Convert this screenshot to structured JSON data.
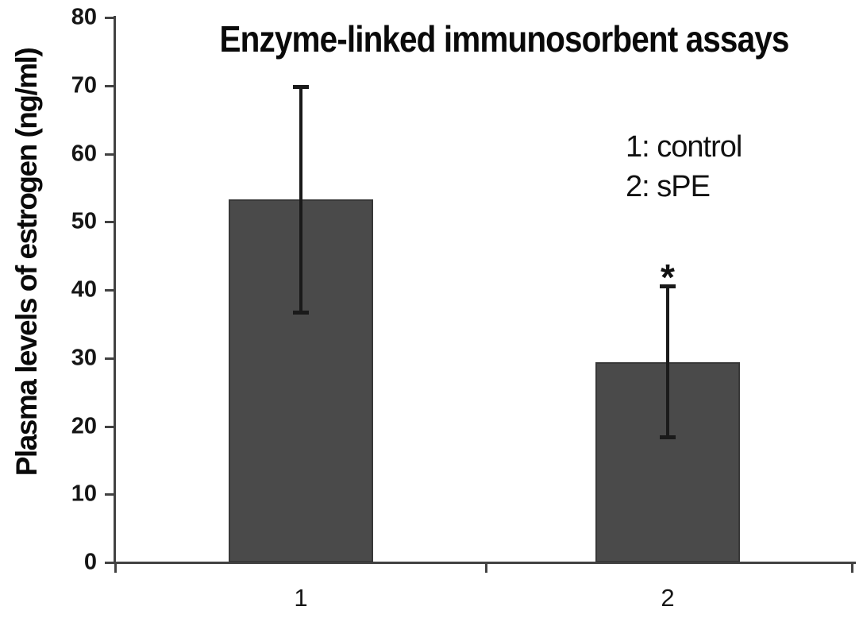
{
  "chart_data": {
    "type": "bar",
    "title": "Enzyme-linked immunosorbent assays",
    "ylabel": "Plasma levels of estrogen (ng/ml)",
    "xlabel": "",
    "categories": [
      "1",
      "2"
    ],
    "series_labels": [
      "control",
      "sPE"
    ],
    "values": [
      53.3,
      29.4
    ],
    "error_upper": [
      69.8,
      40.6
    ],
    "error_lower": [
      36.6,
      18.3
    ],
    "ylim": [
      0,
      80
    ],
    "yticks": [
      0,
      10,
      20,
      30,
      40,
      50,
      60,
      70,
      80
    ],
    "grid": false,
    "legend": [
      "1: control",
      "2: sPE"
    ],
    "legend_position": "upper-right",
    "annotation": {
      "text": "*",
      "above_category": "2"
    },
    "bar_color": "#4a4a4a",
    "axis_color": "#424242",
    "error_color": "#1a1a1a",
    "background_color": "#ffffff"
  }
}
